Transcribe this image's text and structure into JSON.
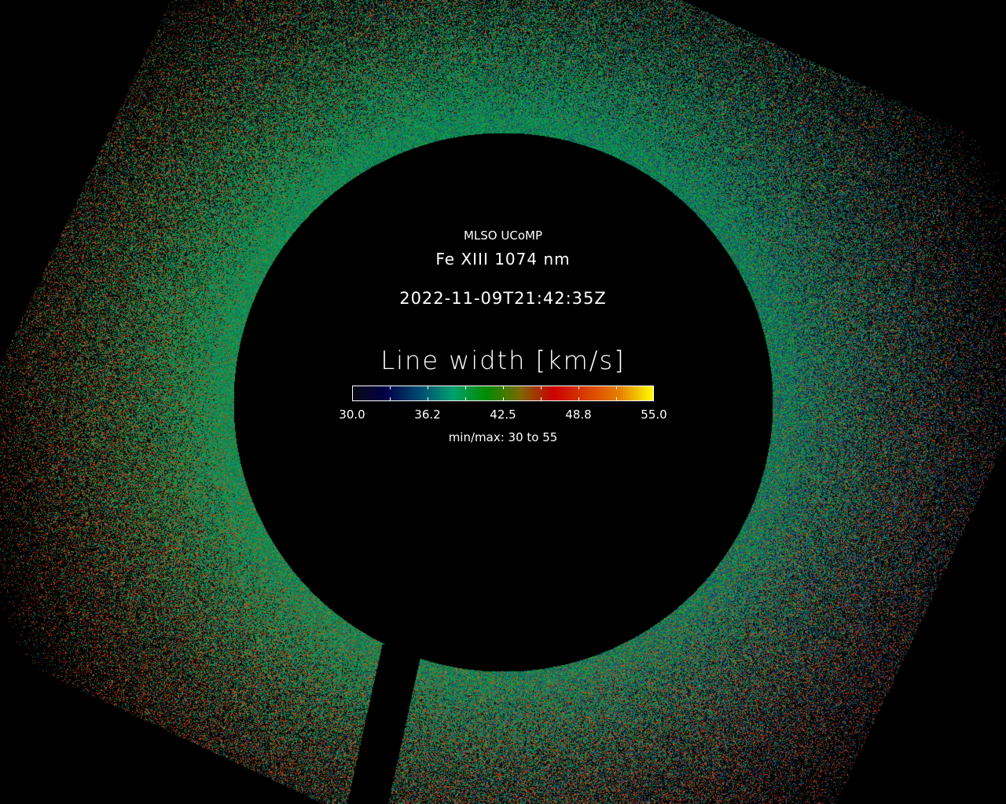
{
  "image": {
    "observatory": "MLSO UCoMP",
    "line": "Fe XIII 1074 nm",
    "timestamp": "2022-11-09T21:42:35Z",
    "quantity": "Line width [km/s]",
    "minmax_label": "min/max: 30 to 55"
  },
  "colorbar": {
    "min": 30,
    "max": 55,
    "tick_labels": [
      "30.0",
      "36.2",
      "42.5",
      "48.8",
      "55.0"
    ],
    "colors": [
      "#0a0a14",
      "#000048",
      "#004a70",
      "#00a070",
      "#008c00",
      "#7a6a00",
      "#cc0000",
      "#d84000",
      "#e88000",
      "#ffff00"
    ]
  }
}
